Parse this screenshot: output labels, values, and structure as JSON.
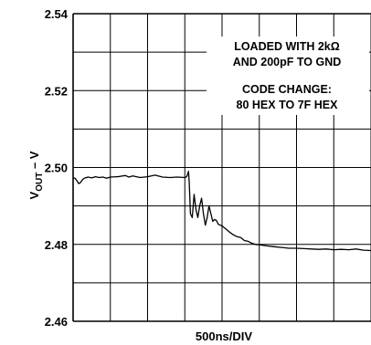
{
  "chart_data": {
    "type": "line",
    "ylabel_main": "V",
    "ylabel_sub": "OUT",
    "ylabel_suffix": " – V",
    "xlabel": "500ns/DIV",
    "ylim": [
      2.46,
      2.54
    ],
    "yticks": [
      2.46,
      2.48,
      2.5,
      2.52,
      2.54
    ],
    "ytick_labels": [
      "2.46",
      "2.48",
      "2.50",
      "2.52",
      "2.54"
    ],
    "x_divisions": 8,
    "y_divisions": 8,
    "grid": true,
    "annotations": [
      "LOADED WITH 2kΩ",
      "AND 200pF TO GND",
      "CODE CHANGE:",
      "80 HEX TO 7F HEX"
    ],
    "series": [
      {
        "color": "#000000",
        "x": [
          0.0,
          0.05,
          0.1,
          0.15,
          0.2,
          0.25,
          0.3,
          0.4,
          0.5,
          0.6,
          0.7,
          0.8,
          0.9,
          1.0,
          1.2,
          1.4,
          1.5,
          1.6,
          1.8,
          2.0,
          2.2,
          2.4,
          2.6,
          2.8,
          3.0,
          3.05,
          3.1,
          3.12,
          3.15,
          3.2,
          3.25,
          3.3,
          3.35,
          3.4,
          3.45,
          3.5,
          3.55,
          3.6,
          3.65,
          3.7,
          3.75,
          3.8,
          3.85,
          3.9,
          4.0,
          4.1,
          4.2,
          4.3,
          4.4,
          4.5,
          4.6,
          4.7,
          4.8,
          4.9,
          5.0,
          5.2,
          5.4,
          5.6,
          5.8,
          6.0,
          6.2,
          6.4,
          6.6,
          6.8,
          7.0,
          7.2,
          7.4,
          7.6,
          7.8,
          8.0
        ],
        "y": [
          2.4973,
          2.4972,
          2.4966,
          2.4958,
          2.4961,
          2.4968,
          2.4972,
          2.4975,
          2.4973,
          2.4976,
          2.4974,
          2.4975,
          2.4972,
          2.4975,
          2.4976,
          2.4979,
          2.4975,
          2.4978,
          2.4974,
          2.4976,
          2.498,
          2.4975,
          2.4974,
          2.4975,
          2.4974,
          2.4976,
          2.499,
          2.496,
          2.488,
          2.487,
          2.493,
          2.489,
          2.487,
          2.49,
          2.492,
          2.488,
          2.485,
          2.487,
          2.49,
          2.488,
          2.486,
          2.4865,
          2.4862,
          2.4852,
          2.4848,
          2.484,
          2.4832,
          2.4825,
          2.482,
          2.4818,
          2.481,
          2.4808,
          2.4803,
          2.48,
          2.4799,
          2.4796,
          2.4794,
          2.4792,
          2.479,
          2.479,
          2.4789,
          2.4788,
          2.4787,
          2.4788,
          2.4786,
          2.4787,
          2.4786,
          2.4788,
          2.4785,
          2.4784
        ]
      }
    ]
  }
}
